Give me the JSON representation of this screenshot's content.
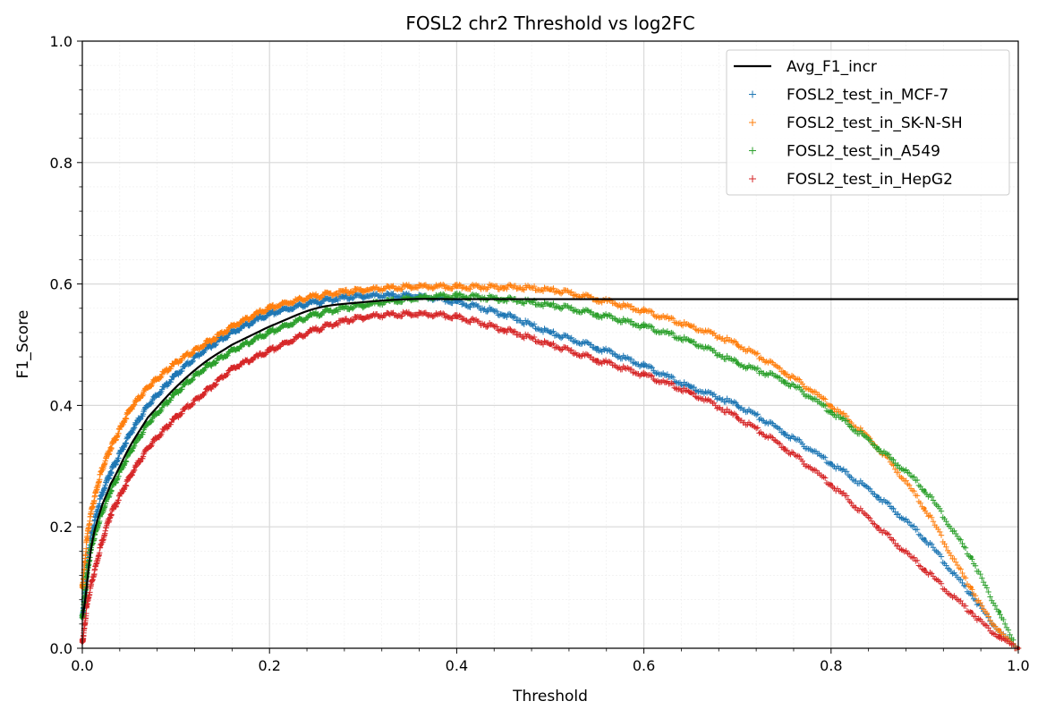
{
  "chart_data": {
    "type": "line",
    "title": "FOSL2 chr2 Threshold vs log2FC",
    "xlabel": "Threshold",
    "ylabel": "F1_Score",
    "xlim": [
      0,
      1
    ],
    "ylim": [
      0,
      1
    ],
    "xticks": [
      "0.0",
      "0.2",
      "0.4",
      "0.6",
      "0.8",
      "1.0"
    ],
    "yticks": [
      "0.0",
      "0.2",
      "0.4",
      "0.6",
      "0.8",
      "1.0"
    ],
    "grid": "major and minor",
    "legend_position": "top-right",
    "series": [
      {
        "name": "Avg_F1_incr",
        "style": "line",
        "color": "#000000",
        "x": [
          0,
          0.01,
          0.02,
          0.03,
          0.05,
          0.07,
          0.1,
          0.13,
          0.16,
          0.2,
          0.25,
          0.3,
          0.35,
          0.4,
          0.5,
          0.6,
          0.7,
          0.8,
          0.9,
          1.0
        ],
        "y": [
          0.05,
          0.17,
          0.23,
          0.27,
          0.33,
          0.38,
          0.43,
          0.47,
          0.5,
          0.53,
          0.56,
          0.57,
          0.575,
          0.575,
          0.575,
          0.575,
          0.575,
          0.575,
          0.575,
          0.575
        ]
      },
      {
        "name": "FOSL2_test_in_MCF-7",
        "style": "markers",
        "color": "#1f77b4",
        "x": [
          0,
          0.005,
          0.01,
          0.02,
          0.03,
          0.05,
          0.07,
          0.1,
          0.13,
          0.16,
          0.2,
          0.25,
          0.3,
          0.35,
          0.4,
          0.45,
          0.5,
          0.55,
          0.6,
          0.65,
          0.7,
          0.75,
          0.8,
          0.85,
          0.9,
          0.95,
          0.98,
          1.0
        ],
        "y": [
          0.05,
          0.14,
          0.19,
          0.25,
          0.29,
          0.35,
          0.4,
          0.45,
          0.49,
          0.52,
          0.55,
          0.57,
          0.58,
          0.58,
          0.57,
          0.55,
          0.52,
          0.495,
          0.465,
          0.43,
          0.4,
          0.355,
          0.305,
          0.25,
          0.18,
          0.09,
          0.03,
          0.0
        ]
      },
      {
        "name": "FOSL2_test_in_SK-N-SH",
        "style": "markers",
        "color": "#ff7f0e",
        "x": [
          0,
          0.005,
          0.01,
          0.02,
          0.03,
          0.05,
          0.07,
          0.1,
          0.13,
          0.16,
          0.2,
          0.25,
          0.3,
          0.35,
          0.4,
          0.45,
          0.5,
          0.55,
          0.6,
          0.65,
          0.7,
          0.75,
          0.8,
          0.85,
          0.9,
          0.95,
          0.98,
          1.0
        ],
        "y": [
          0.1,
          0.18,
          0.23,
          0.29,
          0.33,
          0.39,
          0.43,
          0.47,
          0.5,
          0.53,
          0.56,
          0.58,
          0.59,
          0.595,
          0.595,
          0.595,
          0.59,
          0.575,
          0.555,
          0.53,
          0.5,
          0.455,
          0.4,
          0.33,
          0.23,
          0.1,
          0.03,
          0.0
        ]
      },
      {
        "name": "FOSL2_test_in_A549",
        "style": "markers",
        "color": "#2ca02c",
        "x": [
          0,
          0.005,
          0.01,
          0.02,
          0.03,
          0.05,
          0.07,
          0.1,
          0.13,
          0.16,
          0.2,
          0.25,
          0.3,
          0.35,
          0.4,
          0.45,
          0.5,
          0.55,
          0.6,
          0.65,
          0.7,
          0.75,
          0.8,
          0.85,
          0.9,
          0.95,
          0.98,
          1.0
        ],
        "y": [
          0.05,
          0.12,
          0.17,
          0.22,
          0.26,
          0.32,
          0.37,
          0.42,
          0.46,
          0.49,
          0.52,
          0.55,
          0.565,
          0.575,
          0.58,
          0.575,
          0.565,
          0.55,
          0.53,
          0.505,
          0.47,
          0.44,
          0.39,
          0.33,
          0.26,
          0.15,
          0.06,
          0.0
        ]
      },
      {
        "name": "FOSL2_test_in_HepG2",
        "style": "markers",
        "color": "#d62728",
        "x": [
          0,
          0.005,
          0.01,
          0.02,
          0.03,
          0.05,
          0.07,
          0.1,
          0.13,
          0.16,
          0.2,
          0.25,
          0.3,
          0.35,
          0.4,
          0.45,
          0.5,
          0.55,
          0.6,
          0.65,
          0.7,
          0.75,
          0.8,
          0.85,
          0.9,
          0.95,
          0.98,
          1.0
        ],
        "y": [
          0.01,
          0.07,
          0.11,
          0.17,
          0.22,
          0.28,
          0.33,
          0.38,
          0.42,
          0.46,
          0.49,
          0.525,
          0.545,
          0.55,
          0.545,
          0.525,
          0.5,
          0.475,
          0.45,
          0.42,
          0.38,
          0.33,
          0.27,
          0.2,
          0.13,
          0.06,
          0.02,
          0.0
        ]
      }
    ]
  }
}
